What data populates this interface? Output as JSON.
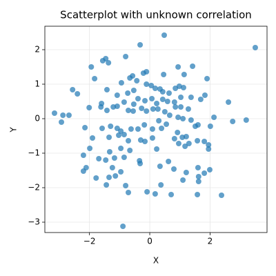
{
  "chart_data": {
    "type": "scatter",
    "title": "Scatterplot with unknown correlation",
    "x_label": "X",
    "y_label": "Y",
    "color": "#1f77b4",
    "grid": true,
    "xlim": [
      -3.48,
      3.89
    ],
    "ylim": [
      -3.3,
      2.68
    ],
    "xticks": [
      {
        "value": -2,
        "label": "−2"
      },
      0,
      2
    ],
    "yticks": [
      {
        "value": -3,
        "label": "−3"
      },
      {
        "value": -2,
        "label": "−2"
      },
      {
        "value": -1,
        "label": "−1"
      },
      0,
      1,
      2
    ],
    "x": [
      0.48,
      3.5,
      -0.32,
      -1.94,
      -1.46,
      -1.56,
      -1.37,
      -0.8,
      1.42,
      -0.57,
      -0.66,
      -0.21,
      -0.11,
      0.94,
      1.14,
      1.9,
      0.46,
      -0.43,
      -0.94,
      -1.83,
      -2.56,
      -2.4,
      -1.42,
      -1.08,
      -0.53,
      -0.73,
      -0.11,
      0.05,
      0.18,
      0.34,
      0.43,
      0.64,
      0.85,
      0.98,
      1.12,
      1.03,
      0.82,
      1.37,
      1.83,
      1.69,
      2.61,
      0.43,
      0.59,
      0.23,
      -0.16,
      0.07,
      -0.39,
      -0.85,
      -0.53,
      -1.08,
      -1.21,
      -1.6,
      -1.62,
      -2.01,
      -1.42,
      -0.71,
      -0.55,
      -0.27,
      -0.11,
      0.11,
      0.27,
      0.5,
      0.85,
      1.03,
      1.28,
      0.66,
      0.94,
      1.37,
      1.1,
      1.6,
      1.51,
      2.13,
      2.01,
      2.75,
      3.2,
      -3.16,
      -2.88,
      -2.68,
      -2.93,
      -2.15,
      -1.58,
      -1.3,
      -1.08,
      -0.96,
      -1.03,
      -0.85,
      -0.62,
      -0.39,
      -0.18,
      0.09,
      0.3,
      0.39,
      0.55,
      0.92,
      1.08,
      1.21,
      0.82,
      0.96,
      1.17,
      1.3,
      1.58,
      1.81,
      1.95,
      1.95,
      -1.9,
      -1.35,
      -0.71,
      -0.3,
      -0.16,
      0.09,
      -1.99,
      -0.96,
      -0.66,
      0.23,
      -1.33,
      -2.2,
      -0.85,
      -1.69,
      -1.46,
      -1.17,
      -0.34,
      -0.32,
      0.62,
      0.34,
      -1.24,
      -2.11,
      -2.2,
      -0.96,
      0.8,
      1.21,
      1.6,
      1.99,
      1.81,
      -1.35,
      -1.78,
      -1.14,
      1.62,
      1.1,
      1.62,
      -1.44,
      -0.8,
      0.37,
      -0.71,
      -0.09,
      0.18,
      0.71,
      1.58,
      2.38,
      -0.89
    ],
    "y": [
      2.42,
      2.06,
      2.14,
      1.5,
      1.74,
      1.68,
      1.62,
      1.8,
      1.52,
      1.24,
      1.18,
      1.32,
      1.36,
      1.5,
      1.28,
      1.16,
      1.28,
      1.1,
      1.04,
      1.16,
      0.84,
      0.72,
      0.84,
      0.68,
      0.82,
      0.74,
      1.0,
      0.96,
      0.88,
      0.86,
      0.78,
      0.74,
      0.88,
      0.94,
      0.9,
      0.62,
      0.48,
      0.62,
      0.68,
      0.56,
      0.48,
      0.56,
      0.5,
      0.44,
      0.52,
      0.58,
      0.58,
      0.48,
      0.42,
      0.36,
      0.34,
      0.44,
      0.34,
      0.32,
      0.24,
      0.24,
      0.22,
      0.3,
      0.22,
      0.28,
      0.28,
      0.2,
      0.34,
      0.34,
      0.28,
      0.1,
      0.04,
      -0.04,
      0,
      -0.18,
      -0.22,
      0.04,
      -0.22,
      -0.08,
      -0.04,
      0.16,
      0.1,
      0.1,
      -0.1,
      -0.26,
      -0.28,
      -0.22,
      -0.28,
      -0.36,
      -0.48,
      -0.46,
      -0.3,
      -0.3,
      -0.18,
      -0.3,
      -0.06,
      -0.28,
      -0.16,
      -0.4,
      -0.54,
      -0.52,
      -0.58,
      -0.72,
      -0.8,
      -0.72,
      -0.64,
      -0.66,
      -0.76,
      -0.88,
      -0.56,
      -0.54,
      -0.64,
      -0.62,
      -0.66,
      -0.56,
      -0.86,
      -0.86,
      -0.92,
      -0.88,
      -0.96,
      -1.06,
      -1.12,
      -1.16,
      -1.2,
      -1.14,
      -1.22,
      -1.3,
      -1.24,
      -1.38,
      -1.42,
      -1.42,
      -1.52,
      -1.54,
      -1.46,
      -1.56,
      -1.42,
      -1.48,
      -1.58,
      -1.7,
      -1.72,
      -1.66,
      -1.68,
      -1.78,
      -1.82,
      -1.92,
      -1.94,
      -1.92,
      -2.14,
      -2.12,
      -2.18,
      -2.2,
      -2.2,
      -2.22,
      -3.12
    ]
  }
}
